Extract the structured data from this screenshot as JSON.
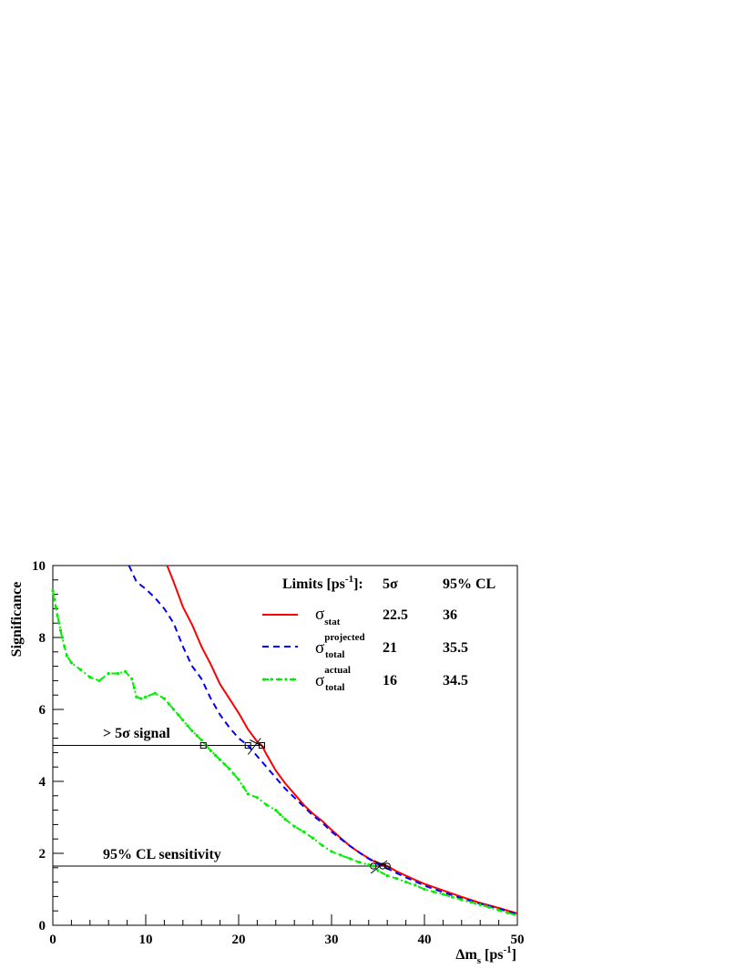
{
  "chart_data": {
    "type": "line",
    "title": "",
    "xlabel": {
      "prefix": "Δm",
      "sub": "s",
      "units": "[ps",
      "exp": "-1",
      "close": "]"
    },
    "ylabel": "Significance",
    "xlim": [
      0,
      50
    ],
    "ylim": [
      0,
      10
    ],
    "x_ticks": [
      0,
      10,
      20,
      30,
      40,
      50
    ],
    "y_ticks": [
      0,
      2,
      4,
      6,
      8,
      10
    ],
    "grid": false,
    "legend": {
      "placement": "top-right",
      "header": {
        "label": "Limits [ps",
        "label_exp": "-1",
        "label_close": "]:",
        "col1": "5σ",
        "col2": "95% CL"
      },
      "entries": [
        {
          "symbol": "σ",
          "sub": "stat",
          "sup": "",
          "limit_5sigma": "22.5",
          "limit_95cl": "36",
          "color": "#ff0000",
          "dash": "solid"
        },
        {
          "symbol": "σ",
          "sub": "total",
          "sup": "projected",
          "limit_5sigma": "21",
          "limit_95cl": "35.5",
          "color": "#0000ff",
          "dash": "dashed"
        },
        {
          "symbol": "σ",
          "sub": "total",
          "sup": "actual",
          "limit_5sigma": "16",
          "limit_95cl": "34.5",
          "color": "#00ee00",
          "dash": "dash-dot-markers"
        }
      ]
    },
    "annotations": [
      {
        "text": "> 5σ signal",
        "y_line": 5.0
      },
      {
        "text": "95% CL sensitivity",
        "y_line": 1.645
      }
    ],
    "series": [
      {
        "color": "#ff0000",
        "style": "solid",
        "x": [
          12.3,
          13,
          14,
          15,
          16,
          17,
          18,
          19,
          20,
          21,
          22,
          22.5,
          23,
          24,
          25,
          26,
          27,
          28,
          29,
          30,
          31,
          32,
          33,
          34,
          35,
          36,
          37,
          38,
          39,
          40,
          42,
          44,
          46,
          48,
          50
        ],
        "y": [
          10.0,
          9.55,
          8.85,
          8.35,
          7.75,
          7.25,
          6.7,
          6.3,
          5.9,
          5.45,
          5.1,
          5.0,
          4.75,
          4.3,
          3.95,
          3.65,
          3.35,
          3.1,
          2.9,
          2.65,
          2.42,
          2.2,
          2.02,
          1.86,
          1.72,
          1.645,
          1.5,
          1.38,
          1.26,
          1.15,
          0.97,
          0.79,
          0.62,
          0.48,
          0.33
        ]
      },
      {
        "color": "#0000ff",
        "style": "dashed",
        "x": [
          8.2,
          9,
          10,
          11,
          12,
          13,
          14,
          15,
          16,
          17,
          18,
          19,
          20,
          21,
          22,
          23,
          24,
          25,
          26,
          27,
          28,
          29,
          30,
          31,
          32,
          33,
          34,
          35,
          35.5,
          36,
          37,
          38,
          39,
          40,
          42,
          44,
          46,
          48,
          50
        ],
        "y": [
          10.0,
          9.55,
          9.35,
          9.1,
          8.8,
          8.4,
          7.75,
          7.2,
          6.85,
          6.3,
          5.85,
          5.5,
          5.2,
          5.0,
          4.7,
          4.4,
          4.1,
          3.8,
          3.55,
          3.3,
          3.05,
          2.85,
          2.6,
          2.4,
          2.2,
          2.02,
          1.85,
          1.7,
          1.645,
          1.58,
          1.45,
          1.33,
          1.22,
          1.1,
          0.92,
          0.75,
          0.6,
          0.46,
          0.3
        ]
      },
      {
        "color": "#00ee00",
        "style": "dash-dot-markers",
        "x": [
          0,
          0.5,
          1,
          1.5,
          2,
          3,
          4,
          5,
          6,
          7,
          7.8,
          8.5,
          9,
          9.5,
          10,
          11,
          12,
          13,
          14,
          15,
          16,
          16.5,
          17,
          18,
          19,
          20,
          21,
          22,
          23,
          24,
          25,
          26,
          27,
          28,
          29,
          30,
          31,
          32,
          33,
          34,
          34.5,
          35,
          36,
          37,
          38,
          39,
          40,
          41,
          42,
          44,
          46,
          48,
          50
        ],
        "y": [
          9.3,
          8.6,
          8.0,
          7.5,
          7.3,
          7.1,
          6.9,
          6.8,
          7.0,
          7.0,
          7.05,
          6.85,
          6.35,
          6.3,
          6.35,
          6.45,
          6.3,
          6.0,
          5.7,
          5.4,
          5.15,
          5.0,
          4.85,
          4.6,
          4.35,
          4.05,
          3.65,
          3.55,
          3.35,
          3.2,
          2.95,
          2.75,
          2.6,
          2.42,
          2.22,
          2.05,
          1.95,
          1.85,
          1.75,
          1.68,
          1.645,
          1.52,
          1.38,
          1.3,
          1.2,
          1.12,
          1.0,
          0.93,
          0.86,
          0.71,
          0.57,
          0.42,
          0.27
        ]
      }
    ],
    "crossing_markers": [
      {
        "x": 22.5,
        "y": 5.0
      },
      {
        "x": 21,
        "y": 5.0
      },
      {
        "x": 16.2,
        "y": 5.0
      },
      {
        "x": 36,
        "y": 1.645
      },
      {
        "x": 35.5,
        "y": 1.645
      },
      {
        "x": 34.5,
        "y": 1.645
      }
    ]
  }
}
